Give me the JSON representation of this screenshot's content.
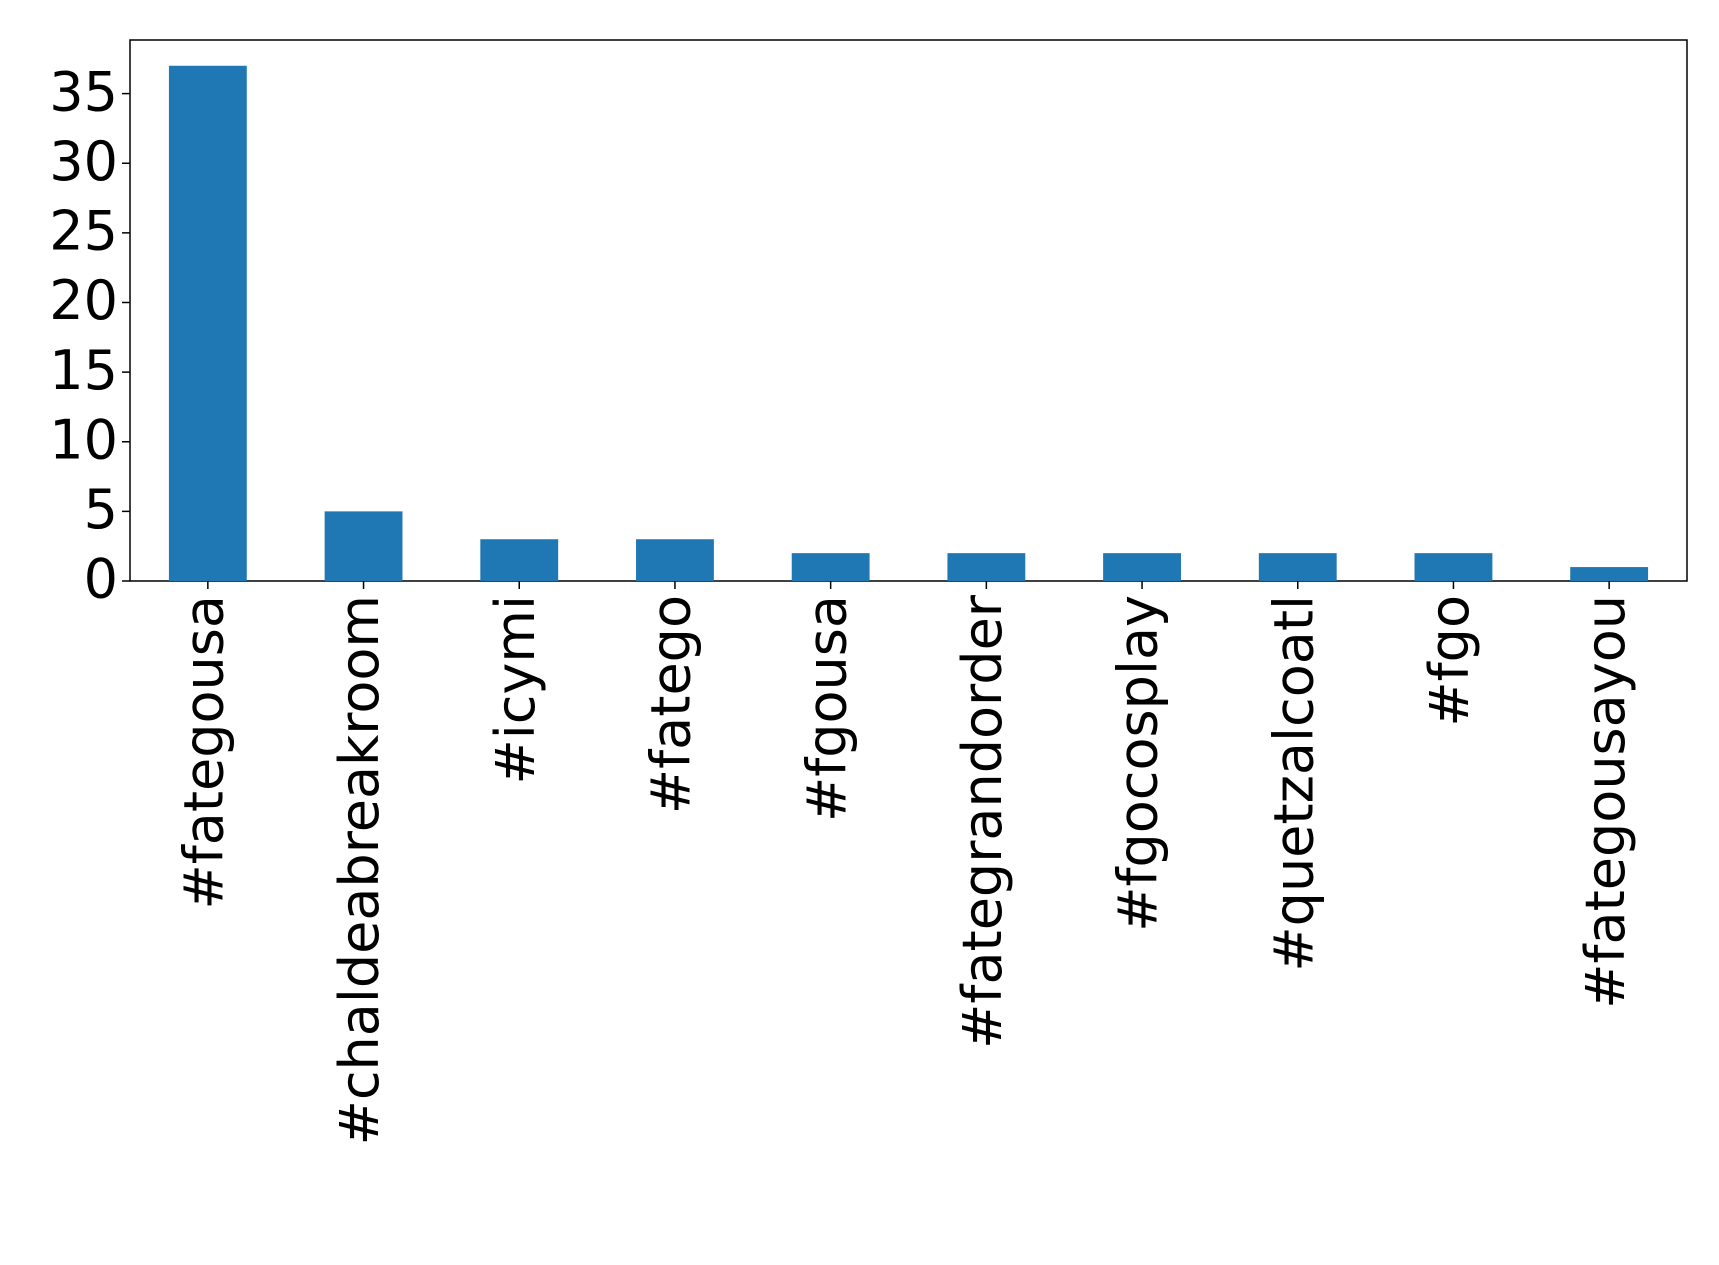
{
  "chart_data": {
    "type": "bar",
    "categories": [
      "#fategousa",
      "#chaldeabreakroom",
      "#icymi",
      "#fatego",
      "#fgousa",
      "#fategrandorder",
      "#fgocosplay",
      "#quetzalcoatl",
      "#fgo",
      "#fategousayou"
    ],
    "values": [
      37,
      5,
      3,
      3,
      2,
      2,
      2,
      2,
      2,
      1
    ],
    "color": "#1f77b4",
    "ylim": [
      0,
      38.85
    ],
    "yticks": [
      0,
      5,
      10,
      15,
      20,
      25,
      30,
      35
    ]
  }
}
